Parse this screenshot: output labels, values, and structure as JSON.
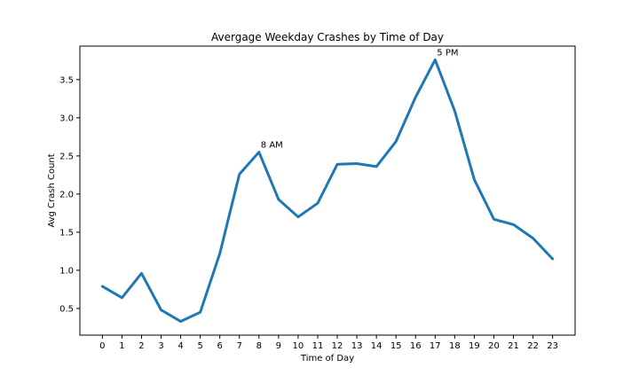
{
  "chart_data": {
    "type": "line",
    "title": "Avergage Weekday Crashes by Time of Day",
    "xlabel": "Time of Day",
    "ylabel": "Avg Crash Count",
    "x": [
      0,
      1,
      2,
      3,
      4,
      5,
      6,
      7,
      8,
      9,
      10,
      11,
      12,
      13,
      14,
      15,
      16,
      17,
      18,
      19,
      20,
      21,
      22,
      23
    ],
    "x_tick_labels": [
      "0",
      "1",
      "2",
      "3",
      "4",
      "5",
      "6",
      "7",
      "8",
      "9",
      "10",
      "11",
      "12",
      "13",
      "14",
      "15",
      "16",
      "17",
      "18",
      "19",
      "20",
      "21",
      "22",
      "23"
    ],
    "series": [
      {
        "values": [
          0.79,
          0.64,
          0.96,
          0.48,
          0.33,
          0.45,
          1.22,
          2.26,
          2.55,
          1.93,
          1.7,
          1.88,
          2.39,
          2.4,
          2.36,
          2.69,
          3.27,
          3.76,
          3.09,
          2.19,
          1.67,
          1.6,
          1.42,
          1.15
        ],
        "color": "#1f77b4"
      }
    ],
    "y_ticks": [
      0.5,
      1.0,
      1.5,
      2.0,
      2.5,
      3.0,
      3.5
    ],
    "y_tick_labels": [
      "0.5",
      "1.0",
      "1.5",
      "2.0",
      "2.5",
      "3.0",
      "3.5"
    ],
    "xlim": [
      -1.15,
      24.15
    ],
    "ylim": [
      0.15,
      3.94
    ],
    "grid": false,
    "annotations": [
      {
        "text": "8 AM",
        "x": 8,
        "y": 2.55
      },
      {
        "text": "5 PM",
        "x": 17,
        "y": 3.76
      }
    ]
  }
}
